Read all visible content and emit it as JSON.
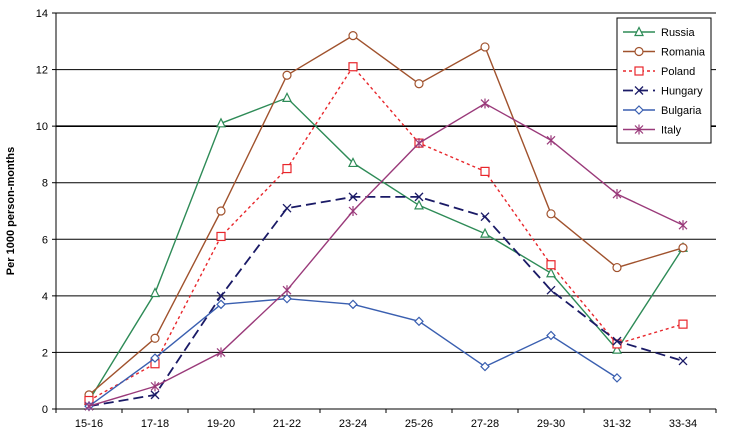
{
  "chart_data": {
    "type": "line",
    "title": "",
    "xlabel": "",
    "ylabel": "Per 1000 person-months",
    "categories": [
      "15-16",
      "17-18",
      "19-20",
      "21-22",
      "23-24",
      "25-26",
      "27-28",
      "29-30",
      "31-32",
      "33-34"
    ],
    "ylim": [
      0,
      14
    ],
    "yticks": [
      0,
      2,
      4,
      6,
      8,
      10,
      12,
      14
    ],
    "grid": "horizontal",
    "legend_position": "top-right",
    "series": [
      {
        "name": "Russia",
        "color": "#2e8b57",
        "marker": "triangle",
        "dash": "solid",
        "values": [
          0.3,
          4.1,
          10.1,
          11.0,
          8.7,
          7.2,
          6.2,
          4.8,
          2.1,
          5.7
        ]
      },
      {
        "name": "Romania",
        "color": "#a0522d",
        "marker": "circle",
        "dash": "solid",
        "values": [
          0.5,
          2.5,
          7.0,
          11.8,
          13.2,
          11.5,
          12.8,
          6.9,
          5.0,
          5.7
        ]
      },
      {
        "name": "Poland",
        "color": "#e8262b",
        "marker": "square",
        "dash": "dotted",
        "values": [
          0.3,
          1.6,
          6.1,
          8.5,
          12.1,
          9.4,
          8.4,
          5.1,
          2.3,
          3.0
        ]
      },
      {
        "name": "Hungary",
        "color": "#1a1a66",
        "marker": "x",
        "dash": "dashed",
        "values": [
          0.1,
          0.5,
          4.0,
          7.1,
          7.5,
          7.5,
          6.8,
          4.2,
          2.4,
          1.7
        ]
      },
      {
        "name": "Bulgaria",
        "color": "#3a5fb0",
        "marker": "diamond",
        "dash": "solid",
        "values": [
          0.1,
          1.8,
          3.7,
          3.9,
          3.7,
          3.1,
          1.5,
          2.6,
          1.1,
          null
        ]
      },
      {
        "name": "Italy",
        "color": "#9a3a7a",
        "marker": "star",
        "dash": "solid",
        "values": [
          0.1,
          0.8,
          2.0,
          4.2,
          7.0,
          9.4,
          10.8,
          9.5,
          7.6,
          6.5
        ]
      }
    ]
  }
}
